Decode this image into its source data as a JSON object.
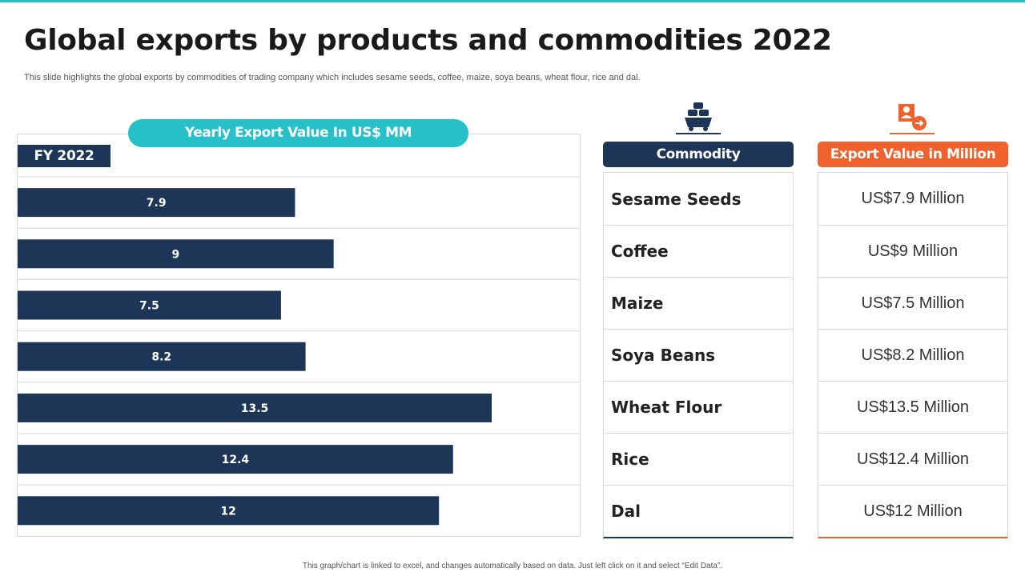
{
  "slide": {
    "title": "Global exports by products and commodities 2022",
    "subtitle": "This slide highlights the global exports by commodities of trading company which includes sesame seeds, coffee, maize, soya beans, wheat flour, rice and dal.",
    "footnote": "This graph/chart is linked to excel, and changes automatically based on data. Just left click on it and select “Edit Data”."
  },
  "chart_header": "Yearly Export Value In US$ MM",
  "fy_label": "FY 2022",
  "chart_data": {
    "type": "bar",
    "orientation": "horizontal",
    "title": "Yearly Export Value In US$ MM",
    "series_name": "FY 2022",
    "categories": [
      "Sesame Seeds",
      "Coffee",
      "Maize",
      "Soya Beans",
      "Wheat Flour",
      "Rice",
      "Dal"
    ],
    "values": [
      7.9,
      9,
      7.5,
      8.2,
      13.5,
      12.4,
      12
    ],
    "value_labels": [
      "7.9",
      "9",
      "7.5",
      "8.2",
      "13.5",
      "12.4",
      "12"
    ],
    "xlim": [
      0,
      16
    ],
    "grid": true,
    "bar_color": "#1d3557"
  },
  "table": {
    "commodity_header": "Commodity",
    "value_header": "Export Value in Million",
    "rows": [
      {
        "commodity": "Sesame Seeds",
        "value": "US$7.9 Million"
      },
      {
        "commodity": "Coffee",
        "value": "US$9 Million"
      },
      {
        "commodity": "Maize",
        "value": "US$7.5 Million"
      },
      {
        "commodity": "Soya Beans",
        "value": "US$8.2 Million"
      },
      {
        "commodity": "Wheat Flour",
        "value": "US$13.5 Million"
      },
      {
        "commodity": "Rice",
        "value": "US$12.4 Million"
      },
      {
        "commodity": "Dal",
        "value": "US$12 Million"
      }
    ]
  },
  "icons": {
    "commodity_icon": "cargo-cart-icon",
    "value_icon": "person-export-icon"
  },
  "colors": {
    "accent_teal": "#26c0c8",
    "navy": "#1d3557",
    "orange": "#f0622d"
  }
}
